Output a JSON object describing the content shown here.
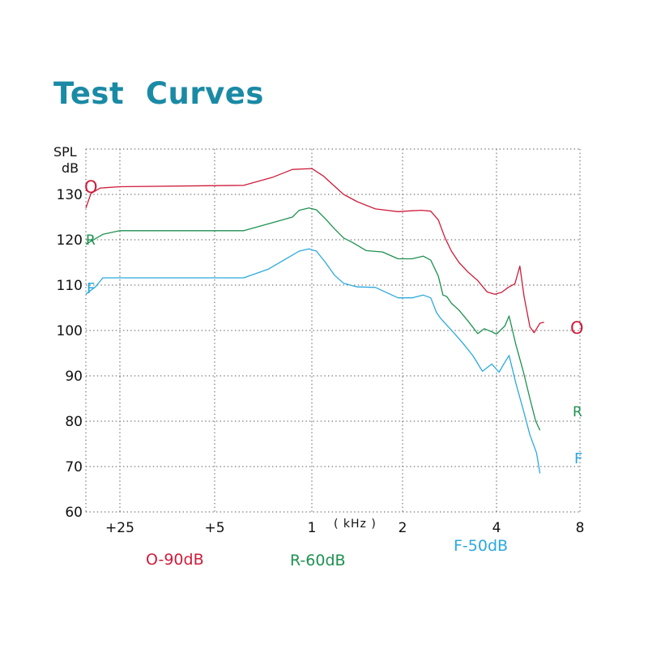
{
  "title": "Test  Curves",
  "colors": {
    "title": "#1a8aa5",
    "O": "#cf1c3a",
    "R": "#1e9150",
    "F": "#2ba9de",
    "grid": "#555555",
    "axis_text": "#111111"
  },
  "chart_data": {
    "type": "line",
    "ylabel_line1": "SPL",
    "ylabel_line2": "dB",
    "ylim": [
      60,
      140
    ],
    "y_ticks": [
      130,
      120,
      110,
      100,
      90,
      80,
      70,
      60
    ],
    "x_tick_labels": [
      "+25",
      "+5",
      "1",
      "2",
      "4",
      "8"
    ],
    "x_unit": "( kHz )",
    "grid": true,
    "series": [
      {
        "name": "O-90dB",
        "label": "O",
        "color": "#cf1c3a",
        "points": [
          [
            0,
            127
          ],
          [
            0.15,
            130.2
          ],
          [
            0.42,
            131.4
          ],
          [
            1.0,
            131.7
          ],
          [
            2.3,
            132
          ],
          [
            2.6,
            133.8
          ],
          [
            2.8,
            135.5
          ],
          [
            3.0,
            135.7
          ],
          [
            3.13,
            134
          ],
          [
            3.25,
            131.8
          ],
          [
            3.35,
            130
          ],
          [
            3.5,
            128.4
          ],
          [
            3.7,
            126.8
          ],
          [
            3.95,
            126.2
          ],
          [
            4.1,
            126.4
          ],
          [
            4.2,
            126.5
          ],
          [
            4.3,
            126.3
          ],
          [
            4.38,
            124.4
          ],
          [
            4.45,
            120.5
          ],
          [
            4.52,
            117.5
          ],
          [
            4.6,
            115
          ],
          [
            4.7,
            112.8
          ],
          [
            4.8,
            111
          ],
          [
            4.9,
            108.5
          ],
          [
            4.98,
            108
          ],
          [
            5.06,
            108.4
          ],
          [
            5.14,
            109.5
          ],
          [
            5.22,
            110.3
          ],
          [
            5.28,
            114.2
          ],
          [
            5.33,
            107.5
          ],
          [
            5.4,
            100.8
          ],
          [
            5.45,
            99.5
          ],
          [
            5.52,
            101.6
          ],
          [
            5.57,
            101.8
          ]
        ]
      },
      {
        "name": "R-60dB",
        "label": "R",
        "color": "#1e9150",
        "points": [
          [
            0,
            119
          ],
          [
            0.5,
            121.2
          ],
          [
            1.0,
            122
          ],
          [
            2.3,
            122
          ],
          [
            2.6,
            123.8
          ],
          [
            2.8,
            125
          ],
          [
            2.87,
            126.5
          ],
          [
            2.97,
            127
          ],
          [
            3.05,
            126.6
          ],
          [
            3.15,
            124.6
          ],
          [
            3.25,
            122.4
          ],
          [
            3.35,
            120.4
          ],
          [
            3.45,
            119.4
          ],
          [
            3.6,
            117.6
          ],
          [
            3.78,
            117.3
          ],
          [
            3.95,
            115.8
          ],
          [
            4.1,
            115.8
          ],
          [
            4.22,
            116.4
          ],
          [
            4.3,
            115.5
          ],
          [
            4.38,
            112
          ],
          [
            4.43,
            107.8
          ],
          [
            4.47,
            107.5
          ],
          [
            4.52,
            106
          ],
          [
            4.6,
            104.5
          ],
          [
            4.7,
            102
          ],
          [
            4.8,
            99.3
          ],
          [
            4.87,
            100.4
          ],
          [
            4.94,
            99.8
          ],
          [
            5.0,
            99.2
          ],
          [
            5.1,
            101
          ],
          [
            5.15,
            103.2
          ],
          [
            5.23,
            97
          ],
          [
            5.32,
            91
          ],
          [
            5.4,
            85
          ],
          [
            5.47,
            80
          ],
          [
            5.52,
            78
          ]
        ]
      },
      {
        "name": "F-50dB",
        "label": "F",
        "color": "#2ba9de",
        "points": [
          [
            0,
            108
          ],
          [
            0.28,
            109.6
          ],
          [
            0.5,
            111.6
          ],
          [
            1.0,
            111.6
          ],
          [
            2.3,
            111.6
          ],
          [
            2.55,
            113.5
          ],
          [
            2.75,
            116
          ],
          [
            2.87,
            117.5
          ],
          [
            2.97,
            118
          ],
          [
            3.05,
            117.5
          ],
          [
            3.15,
            115
          ],
          [
            3.25,
            112.2
          ],
          [
            3.35,
            110.4
          ],
          [
            3.5,
            109.6
          ],
          [
            3.7,
            109.5
          ],
          [
            3.95,
            107.2
          ],
          [
            4.1,
            107.2
          ],
          [
            4.22,
            107.8
          ],
          [
            4.3,
            107.2
          ],
          [
            4.36,
            104
          ],
          [
            4.4,
            102.8
          ],
          [
            4.47,
            101.2
          ],
          [
            4.55,
            99.4
          ],
          [
            4.65,
            97
          ],
          [
            4.75,
            94.4
          ],
          [
            4.85,
            91
          ],
          [
            4.95,
            92.6
          ],
          [
            5.03,
            90.8
          ],
          [
            5.1,
            93
          ],
          [
            5.15,
            94.5
          ],
          [
            5.23,
            88.5
          ],
          [
            5.32,
            82.5
          ],
          [
            5.4,
            77
          ],
          [
            5.48,
            73
          ],
          [
            5.52,
            68.5
          ]
        ]
      }
    ],
    "series_labels": [
      {
        "series": "O",
        "text": "O",
        "color": "#cf1c3a"
      },
      {
        "series": "R",
        "text": "R",
        "color": "#1e9150"
      },
      {
        "series": "F",
        "text": "F",
        "color": "#2ba9de"
      }
    ]
  },
  "legend": [
    {
      "text": "O-90dB",
      "color": "#cf1c3a"
    },
    {
      "text": "R-60dB",
      "color": "#1e9150"
    },
    {
      "text": "F-50dB",
      "color": "#2ba9de"
    }
  ]
}
